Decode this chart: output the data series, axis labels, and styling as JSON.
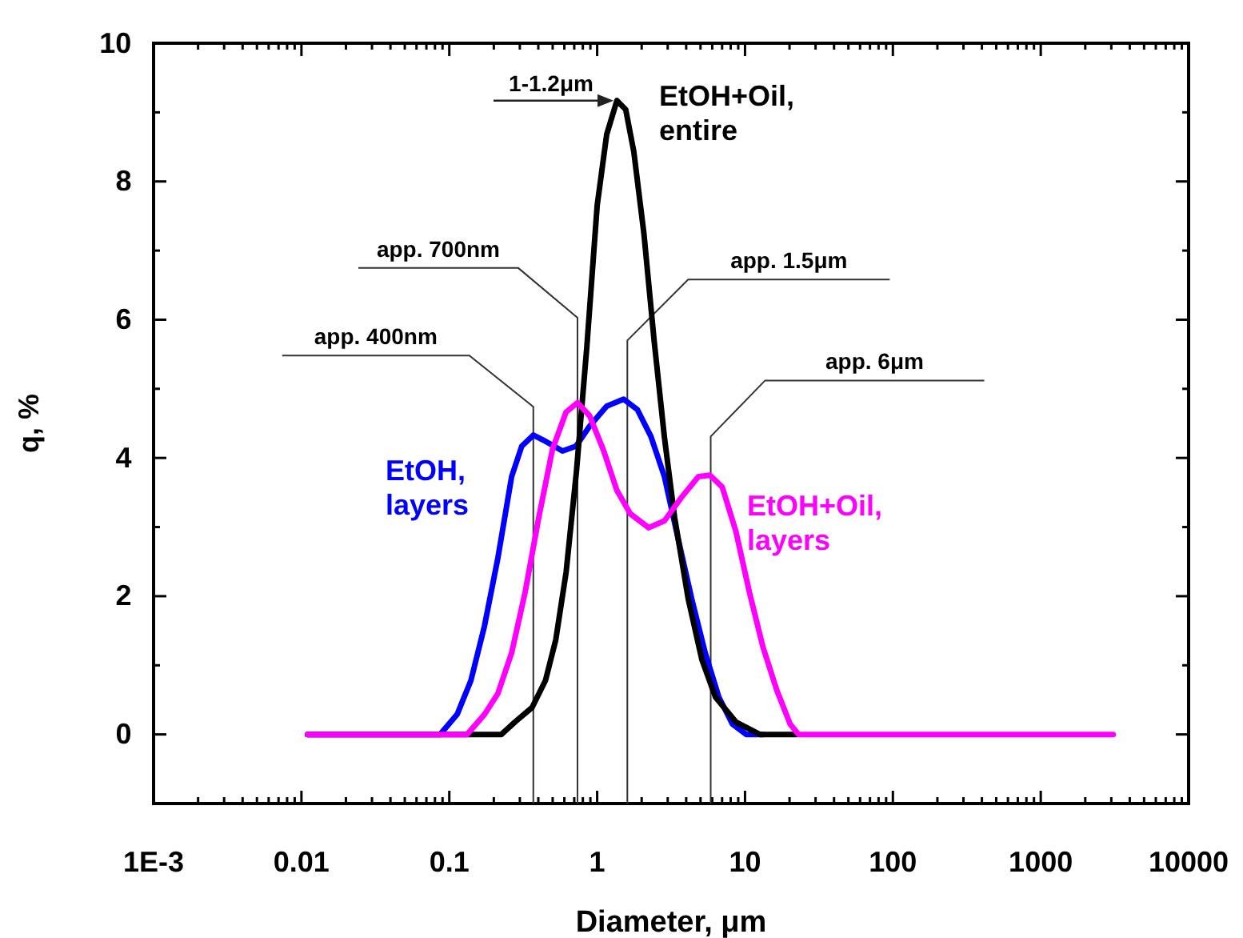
{
  "chart_data": {
    "type": "line",
    "xlabel": "Diameter, μm",
    "ylabel": "q, %",
    "log": "x",
    "xlim": [
      0.001,
      10000
    ],
    "xticks": [
      {
        "value": 0.001,
        "label": "1E-3"
      },
      0.01,
      0.1,
      1,
      10,
      100,
      1000,
      10000
    ],
    "ylim": [
      -1,
      10
    ],
    "yticks": [
      0,
      2,
      4,
      6,
      8,
      10
    ],
    "grid": false,
    "legend": false,
    "marker": "none",
    "line_style": "solid",
    "series": [
      {
        "name": "EtOH+Oil, entire",
        "color": "#000000",
        "x": [
          0.011,
          0.225,
          0.278,
          0.363,
          0.447,
          0.525,
          0.617,
          0.724,
          0.851,
          1,
          1.16,
          1.36,
          1.56,
          1.77,
          2.07,
          2.43,
          2.85,
          3.34,
          4.13,
          5.11,
          6.31,
          8.67,
          12.6,
          22.4
        ],
        "values": [
          0,
          0,
          0.18,
          0.39,
          0.78,
          1.37,
          2.35,
          3.8,
          5.6,
          7.65,
          8.68,
          9.17,
          9.04,
          8.43,
          7.25,
          5.69,
          4.3,
          3.14,
          1.96,
          1.08,
          0.54,
          0.18,
          0,
          0
        ]
      },
      {
        "name": "EtOH, layers",
        "color": "#0000ff",
        "x": [
          0.011,
          0.0867,
          0.113,
          0.14,
          0.173,
          0.213,
          0.264,
          0.309,
          0.37,
          0.448,
          0.583,
          0.719,
          0.889,
          1.16,
          1.51,
          1.87,
          2.31,
          2.85,
          3.52,
          4.36,
          5.38,
          6.65,
          8.22,
          10.2,
          13.2
        ],
        "values": [
          0,
          0,
          0.29,
          0.78,
          1.57,
          2.55,
          3.73,
          4.17,
          4.33,
          4.24,
          4.1,
          4.17,
          4.46,
          4.75,
          4.85,
          4.7,
          4.31,
          3.73,
          2.84,
          1.96,
          1.18,
          0.54,
          0.15,
          0,
          0
        ]
      },
      {
        "name": "EtOH+Oil, layers",
        "color": "#ff00ff",
        "x": [
          0.011,
          0.132,
          0.173,
          0.213,
          0.264,
          0.326,
          0.403,
          0.498,
          0.615,
          0.736,
          0.889,
          1.1,
          1.36,
          1.68,
          2.23,
          2.85,
          3.72,
          4.84,
          5.79,
          7.01,
          8.67,
          10.7,
          13.2,
          16.4,
          20.2,
          23,
          3090
        ],
        "values": [
          0,
          0,
          0.29,
          0.59,
          1.18,
          2.06,
          3.14,
          4.12,
          4.66,
          4.8,
          4.61,
          4.12,
          3.53,
          3.19,
          2.99,
          3.09,
          3.43,
          3.73,
          3.75,
          3.58,
          2.94,
          2.06,
          1.27,
          0.64,
          0.15,
          0,
          0
        ]
      }
    ],
    "annotations": [
      {
        "text": "1-1.2μm",
        "x": 1.29,
        "y": 9.17
      }
    ],
    "ref_lines": [
      {
        "axis": "x",
        "value": 0.37,
        "label": "app. 400nm"
      },
      {
        "axis": "x",
        "value": 0.736,
        "label": "app. 700nm"
      },
      {
        "axis": "x",
        "value": 1.6,
        "label": "app. 1.5μm"
      },
      {
        "axis": "x",
        "value": 5.86,
        "label": "app. 6μm"
      }
    ]
  }
}
